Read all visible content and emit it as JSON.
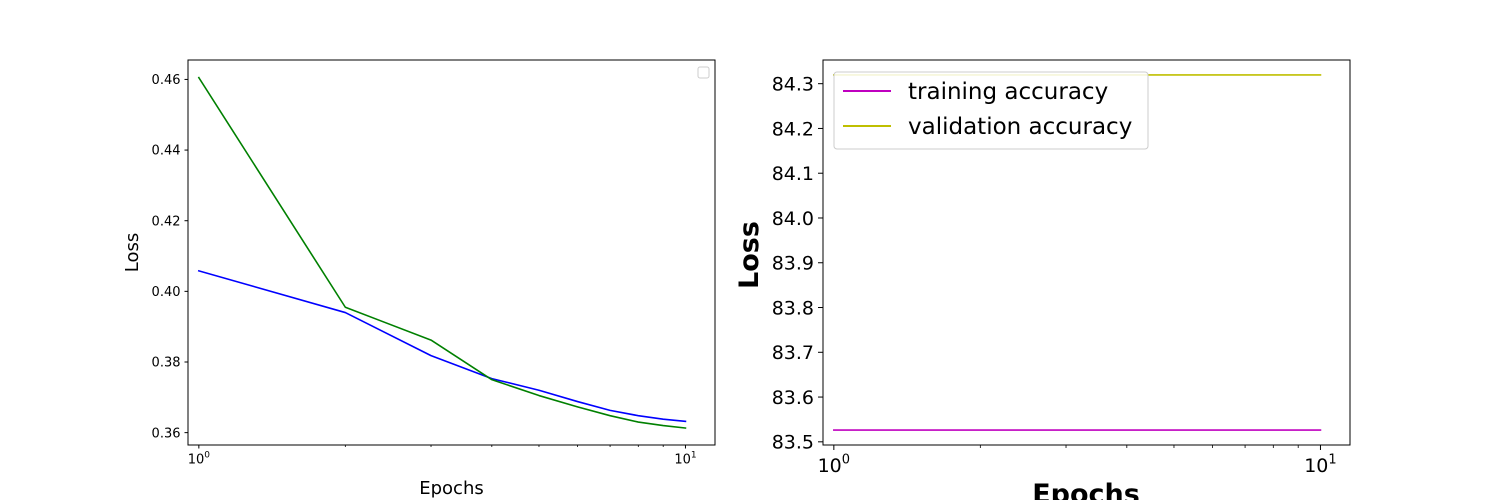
{
  "chart_data": [
    {
      "type": "line",
      "xscale": "log",
      "xlim": [
        0.95,
        11.5
      ],
      "ylim": [
        0.3565,
        0.4655
      ],
      "x_major_ticks": [
        {
          "value": 1,
          "base": "10",
          "exp": "0"
        },
        {
          "value": 10,
          "base": "10",
          "exp": "1"
        }
      ],
      "yticks": [
        0.36,
        0.38,
        0.4,
        0.42,
        0.44,
        0.46
      ],
      "ytick_labels": [
        "0.36",
        "0.38",
        "0.40",
        "0.42",
        "0.44",
        "0.46"
      ],
      "xlabel": "Epochs",
      "ylabel": "Loss",
      "legend": {
        "position": "top-right",
        "entries": []
      },
      "series": [
        {
          "color": "#0000ff",
          "x": [
            1,
            2,
            3,
            4,
            5,
            6,
            7,
            8,
            9,
            10
          ],
          "values": [
            0.4058,
            0.394,
            0.3818,
            0.3753,
            0.372,
            0.3688,
            0.3663,
            0.3648,
            0.3638,
            0.3632
          ]
        },
        {
          "color": "#008000",
          "x": [
            1,
            2,
            3,
            4,
            5,
            6,
            7,
            8,
            9,
            10
          ],
          "values": [
            0.4605,
            0.3955,
            0.3862,
            0.375,
            0.3705,
            0.3673,
            0.3648,
            0.363,
            0.362,
            0.3613
          ]
        }
      ]
    },
    {
      "type": "line",
      "xscale": "log",
      "xlim": [
        0.95,
        11.5
      ],
      "ylim": [
        83.4929,
        84.3529
      ],
      "x_major_ticks": [
        {
          "value": 1,
          "base": "10",
          "exp": "0"
        },
        {
          "value": 10,
          "base": "10",
          "exp": "1"
        }
      ],
      "yticks": [
        83.5,
        83.6,
        83.7,
        83.8,
        83.9,
        84.0,
        84.1,
        84.2,
        84.3
      ],
      "ytick_labels": [
        "83.5",
        "83.6",
        "83.7",
        "83.8",
        "83.9",
        "84.0",
        "84.1",
        "84.2",
        "84.3"
      ],
      "xlabel": "Epochs",
      "ylabel": "Loss",
      "legend": {
        "position": "top-left"
      },
      "series": [
        {
          "name": "training accuracy",
          "color": "#bf00bf",
          "x": [
            1,
            2,
            3,
            4,
            5,
            6,
            7,
            8,
            9,
            10
          ],
          "values": [
            83.5262,
            83.5262,
            83.5262,
            83.5262,
            83.5262,
            83.5262,
            83.5262,
            83.5262,
            83.5262,
            83.5262
          ]
        },
        {
          "name": "validation accuracy",
          "color": "#bfbf00",
          "x": [
            1,
            2,
            3,
            4,
            5,
            6,
            7,
            8,
            9,
            10
          ],
          "values": [
            84.3196,
            84.3196,
            84.3196,
            84.3196,
            84.3196,
            84.3196,
            84.3196,
            84.3196,
            84.3196,
            84.3196
          ]
        }
      ]
    }
  ]
}
